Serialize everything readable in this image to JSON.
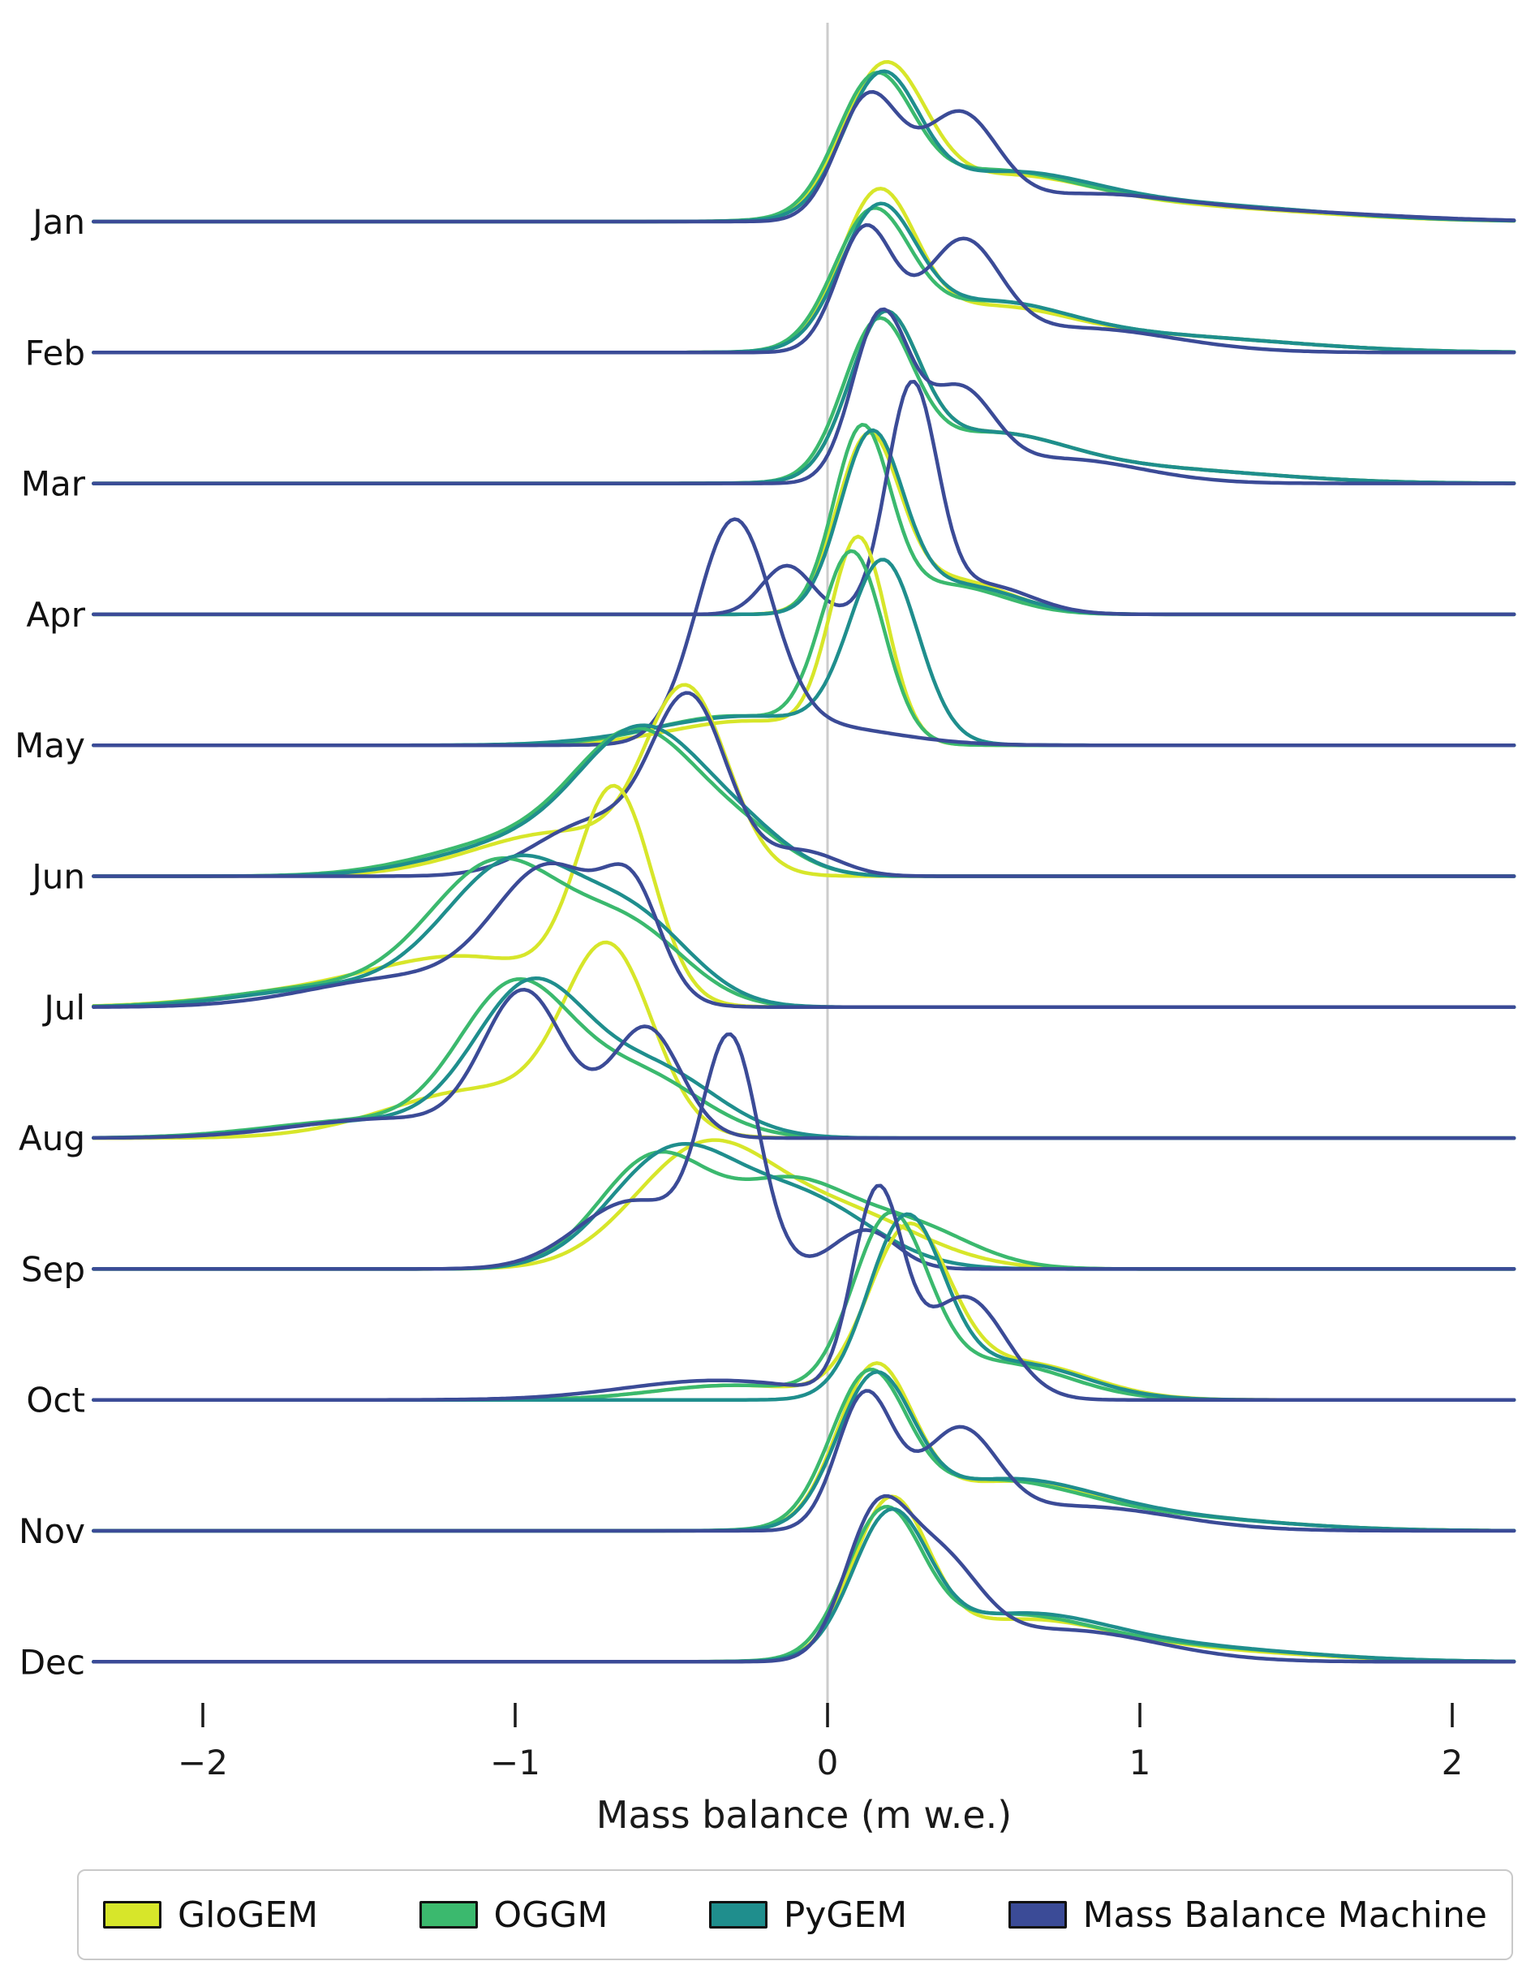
{
  "figure": {
    "xlabel": "Mass balance (m w.e.)",
    "xtick_labels": [
      "−2",
      "−1",
      "0",
      "1",
      "2"
    ],
    "zero_line_color": "#cccccc",
    "axis_color": "#1a1a1a"
  },
  "legend": {
    "items": [
      {
        "label": "GloGEM",
        "color": "#d7e62a"
      },
      {
        "label": "OGGM",
        "color": "#3bb96e"
      },
      {
        "label": "PyGEM",
        "color": "#1f8e8d"
      },
      {
        "label": "Mass Balance Machine",
        "color": "#3b4b97"
      }
    ]
  },
  "chart_data": {
    "type": "area",
    "subtype": "ridgeline_kde",
    "title": "",
    "xlabel": "Mass balance (m w.e.)",
    "ylabel": "",
    "xlim": [
      -2.35,
      2.2
    ],
    "xticks": [
      -2,
      -1,
      0,
      1,
      2
    ],
    "grid": false,
    "legend_position": "bottom",
    "categories": [
      "Jan",
      "Feb",
      "Mar",
      "Apr",
      "May",
      "Jun",
      "Jul",
      "Aug",
      "Sep",
      "Oct",
      "Nov",
      "Dec"
    ],
    "series": [
      {
        "name": "GloGEM",
        "color": "#d7e62a"
      },
      {
        "name": "OGGM",
        "color": "#3bb96e"
      },
      {
        "name": "PyGEM",
        "color": "#1f8e8d"
      },
      {
        "name": "Mass Balance Machine",
        "color": "#3b4b97"
      }
    ],
    "note": "Each distribution is a kernel-density curve per month and model, approximated as a mixture of Gaussian components [mean_mwe, sigma_mwe, peak_amplitude_0to1].",
    "distributions": {
      "Jan": {
        "GloGEM": [
          [
            0.18,
            0.13,
            0.58
          ],
          [
            0.55,
            0.28,
            0.16
          ],
          [
            1.1,
            0.45,
            0.06
          ]
        ],
        "OGGM": [
          [
            0.15,
            0.12,
            0.52
          ],
          [
            0.5,
            0.28,
            0.18
          ],
          [
            1.1,
            0.45,
            0.07
          ]
        ],
        "PyGEM": [
          [
            0.17,
            0.12,
            0.54
          ],
          [
            0.55,
            0.28,
            0.17
          ],
          [
            1.1,
            0.45,
            0.07
          ]
        ],
        "Mass Balance Machine": [
          [
            0.13,
            0.1,
            0.5
          ],
          [
            0.42,
            0.12,
            0.4
          ],
          [
            0.8,
            0.3,
            0.1
          ],
          [
            1.4,
            0.4,
            0.04
          ]
        ]
      },
      "Feb": {
        "GloGEM": [
          [
            0.16,
            0.12,
            0.6
          ],
          [
            0.5,
            0.25,
            0.15
          ],
          [
            1.0,
            0.45,
            0.07
          ]
        ],
        "OGGM": [
          [
            0.14,
            0.12,
            0.52
          ],
          [
            0.5,
            0.25,
            0.17
          ],
          [
            1.0,
            0.45,
            0.07
          ]
        ],
        "PyGEM": [
          [
            0.16,
            0.12,
            0.53
          ],
          [
            0.5,
            0.25,
            0.17
          ],
          [
            1.0,
            0.45,
            0.07
          ]
        ],
        "Mass Balance Machine": [
          [
            0.12,
            0.09,
            0.5
          ],
          [
            0.43,
            0.12,
            0.42
          ],
          [
            0.8,
            0.3,
            0.1
          ]
        ]
      },
      "Mar": {
        "GloGEM": [
          [
            0.18,
            0.11,
            0.62
          ],
          [
            0.5,
            0.25,
            0.18
          ],
          [
            1.0,
            0.4,
            0.06
          ]
        ],
        "OGGM": [
          [
            0.16,
            0.11,
            0.6
          ],
          [
            0.5,
            0.25,
            0.18
          ],
          [
            1.0,
            0.4,
            0.06
          ]
        ],
        "PyGEM": [
          [
            0.18,
            0.11,
            0.62
          ],
          [
            0.5,
            0.25,
            0.18
          ],
          [
            1.0,
            0.4,
            0.06
          ]
        ],
        "Mass Balance Machine": [
          [
            0.17,
            0.09,
            0.68
          ],
          [
            0.42,
            0.11,
            0.35
          ],
          [
            0.75,
            0.25,
            0.1
          ]
        ]
      },
      "Apr": {
        "GloGEM": [
          [
            0.13,
            0.1,
            0.7
          ],
          [
            0.4,
            0.18,
            0.14
          ]
        ],
        "OGGM": [
          [
            0.11,
            0.09,
            0.74
          ],
          [
            0.38,
            0.18,
            0.12
          ]
        ],
        "PyGEM": [
          [
            0.14,
            0.1,
            0.72
          ],
          [
            0.42,
            0.18,
            0.12
          ]
        ],
        "Mass Balance Machine": [
          [
            0.27,
            0.08,
            0.92
          ],
          [
            -0.13,
            0.08,
            0.2
          ],
          [
            0.5,
            0.15,
            0.12
          ]
        ]
      },
      "May": {
        "GloGEM": [
          [
            0.1,
            0.09,
            0.82
          ],
          [
            -0.25,
            0.25,
            0.1
          ]
        ],
        "OGGM": [
          [
            0.08,
            0.1,
            0.76
          ],
          [
            -0.3,
            0.25,
            0.12
          ]
        ],
        "PyGEM": [
          [
            0.18,
            0.11,
            0.72
          ],
          [
            -0.25,
            0.3,
            0.12
          ]
        ],
        "Mass Balance Machine": [
          [
            -0.3,
            0.12,
            0.88
          ],
          [
            -0.05,
            0.25,
            0.08
          ]
        ]
      },
      "Jun": {
        "GloGEM": [
          [
            -0.45,
            0.13,
            0.72
          ],
          [
            -0.85,
            0.28,
            0.18
          ]
        ],
        "OGGM": [
          [
            -0.6,
            0.2,
            0.55
          ],
          [
            -1.0,
            0.28,
            0.14
          ],
          [
            -0.25,
            0.15,
            0.12
          ]
        ],
        "PyGEM": [
          [
            -0.58,
            0.2,
            0.55
          ],
          [
            -0.95,
            0.28,
            0.14
          ],
          [
            -0.25,
            0.15,
            0.12
          ]
        ],
        "Mass Balance Machine": [
          [
            -0.44,
            0.12,
            0.7
          ],
          [
            -0.75,
            0.18,
            0.22
          ],
          [
            -0.08,
            0.12,
            0.1
          ]
        ]
      },
      "Jul": {
        "GloGEM": [
          [
            -0.68,
            0.12,
            0.85
          ],
          [
            -1.15,
            0.3,
            0.2
          ],
          [
            -1.7,
            0.3,
            0.05
          ]
        ],
        "OGGM": [
          [
            -1.05,
            0.22,
            0.58
          ],
          [
            -0.62,
            0.18,
            0.28
          ],
          [
            -1.6,
            0.3,
            0.08
          ]
        ],
        "PyGEM": [
          [
            -1.0,
            0.22,
            0.58
          ],
          [
            -0.6,
            0.18,
            0.3
          ],
          [
            -1.55,
            0.3,
            0.08
          ]
        ],
        "Mass Balance Machine": [
          [
            -0.88,
            0.18,
            0.55
          ],
          [
            -0.62,
            0.09,
            0.35
          ],
          [
            -1.35,
            0.3,
            0.12
          ]
        ]
      },
      "Aug": {
        "GloGEM": [
          [
            -0.7,
            0.14,
            0.72
          ],
          [
            -1.1,
            0.3,
            0.2
          ]
        ],
        "OGGM": [
          [
            -1.0,
            0.18,
            0.6
          ],
          [
            -0.6,
            0.2,
            0.25
          ],
          [
            -1.5,
            0.3,
            0.07
          ]
        ],
        "PyGEM": [
          [
            -0.95,
            0.18,
            0.6
          ],
          [
            -0.55,
            0.2,
            0.27
          ],
          [
            -1.45,
            0.3,
            0.07
          ]
        ],
        "Mass Balance Machine": [
          [
            -0.97,
            0.13,
            0.58
          ],
          [
            -0.58,
            0.11,
            0.45
          ],
          [
            -1.4,
            0.3,
            0.08
          ]
        ]
      },
      "Sep": {
        "GloGEM": [
          [
            -0.4,
            0.22,
            0.48
          ],
          [
            0.05,
            0.25,
            0.22
          ]
        ],
        "OGGM": [
          [
            -0.55,
            0.18,
            0.46
          ],
          [
            -0.12,
            0.18,
            0.32
          ],
          [
            0.25,
            0.2,
            0.18
          ]
        ],
        "PyGEM": [
          [
            -0.5,
            0.2,
            0.46
          ],
          [
            -0.08,
            0.22,
            0.28
          ]
        ],
        "Mass Balance Machine": [
          [
            -0.31,
            0.09,
            0.9
          ],
          [
            -0.62,
            0.18,
            0.28
          ],
          [
            0.12,
            0.1,
            0.16
          ]
        ]
      },
      "Oct": {
        "GloGEM": [
          [
            0.26,
            0.13,
            0.68
          ],
          [
            0.62,
            0.22,
            0.15
          ],
          [
            -0.3,
            0.25,
            0.06
          ]
        ],
        "OGGM": [
          [
            0.2,
            0.12,
            0.72
          ],
          [
            0.55,
            0.22,
            0.15
          ],
          [
            -0.3,
            0.25,
            0.06
          ]
        ],
        "PyGEM": [
          [
            0.25,
            0.12,
            0.72
          ],
          [
            0.6,
            0.22,
            0.15
          ]
        ],
        "Mass Balance Machine": [
          [
            0.16,
            0.08,
            0.82
          ],
          [
            0.44,
            0.13,
            0.42
          ],
          [
            -0.35,
            0.3,
            0.08
          ]
        ]
      },
      "Nov": {
        "GloGEM": [
          [
            0.15,
            0.12,
            0.62
          ],
          [
            0.55,
            0.28,
            0.17
          ],
          [
            1.0,
            0.4,
            0.06
          ]
        ],
        "OGGM": [
          [
            0.13,
            0.12,
            0.58
          ],
          [
            0.5,
            0.28,
            0.18
          ],
          [
            1.0,
            0.4,
            0.06
          ]
        ],
        "PyGEM": [
          [
            0.15,
            0.12,
            0.58
          ],
          [
            0.55,
            0.28,
            0.18
          ],
          [
            1.0,
            0.4,
            0.06
          ]
        ],
        "Mass Balance Machine": [
          [
            0.12,
            0.09,
            0.55
          ],
          [
            0.42,
            0.12,
            0.38
          ],
          [
            0.8,
            0.3,
            0.1
          ]
        ]
      },
      "Dec": {
        "GloGEM": [
          [
            0.2,
            0.12,
            0.62
          ],
          [
            0.6,
            0.28,
            0.15
          ],
          [
            1.1,
            0.4,
            0.05
          ]
        ],
        "OGGM": [
          [
            0.18,
            0.12,
            0.56
          ],
          [
            0.55,
            0.28,
            0.17
          ],
          [
            1.1,
            0.4,
            0.06
          ]
        ],
        "PyGEM": [
          [
            0.2,
            0.12,
            0.56
          ],
          [
            0.6,
            0.28,
            0.17
          ],
          [
            1.1,
            0.4,
            0.06
          ]
        ],
        "Mass Balance Machine": [
          [
            0.15,
            0.1,
            0.52
          ],
          [
            0.35,
            0.13,
            0.38
          ],
          [
            0.75,
            0.3,
            0.13
          ]
        ]
      }
    }
  }
}
